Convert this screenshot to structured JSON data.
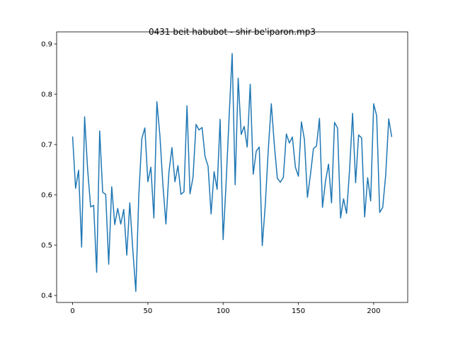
{
  "chart_data": {
    "type": "line",
    "title": "0431 beit habubot - shir be'iparon.mp3",
    "x": [
      0,
      2,
      4,
      6,
      8,
      10,
      12,
      14,
      16,
      18,
      20,
      22,
      24,
      26,
      28,
      30,
      32,
      34,
      36,
      38,
      40,
      42,
      44,
      46,
      48,
      50,
      52,
      54,
      56,
      58,
      60,
      62,
      64,
      66,
      68,
      70,
      72,
      74,
      76,
      78,
      80,
      82,
      84,
      86,
      88,
      90,
      92,
      94,
      96,
      98,
      100,
      102,
      104,
      106,
      108,
      110,
      112,
      114,
      116,
      118,
      120,
      122,
      124,
      126,
      128,
      130,
      132,
      134,
      136,
      138,
      140,
      142,
      144,
      146,
      148,
      150,
      152,
      154,
      156,
      158,
      160,
      162,
      164,
      166,
      168,
      170,
      172,
      174,
      176,
      178,
      180,
      182,
      184,
      186,
      188,
      190,
      192,
      194,
      196,
      198,
      200,
      202,
      204,
      206,
      208,
      210,
      212
    ],
    "series": [
      {
        "color": "#1f77b4",
        "values": [
          0.716,
          0.613,
          0.649,
          0.496,
          0.755,
          0.65,
          0.576,
          0.579,
          0.446,
          0.727,
          0.605,
          0.601,
          0.462,
          0.616,
          0.541,
          0.573,
          0.542,
          0.571,
          0.48,
          0.584,
          0.491,
          0.408,
          0.6,
          0.712,
          0.733,
          0.626,
          0.655,
          0.554,
          0.785,
          0.718,
          0.62,
          0.542,
          0.645,
          0.694,
          0.626,
          0.658,
          0.601,
          0.606,
          0.777,
          0.602,
          0.635,
          0.74,
          0.729,
          0.734,
          0.676,
          0.657,
          0.562,
          0.646,
          0.611,
          0.75,
          0.511,
          0.625,
          0.756,
          0.881,
          0.62,
          0.832,
          0.72,
          0.736,
          0.695,
          0.82,
          0.641,
          0.687,
          0.695,
          0.499,
          0.58,
          0.69,
          0.781,
          0.7,
          0.633,
          0.625,
          0.635,
          0.721,
          0.703,
          0.715,
          0.655,
          0.637,
          0.745,
          0.71,
          0.595,
          0.64,
          0.692,
          0.697,
          0.752,
          0.575,
          0.627,
          0.661,
          0.584,
          0.744,
          0.733,
          0.554,
          0.592,
          0.563,
          0.65,
          0.762,
          0.624,
          0.719,
          0.713,
          0.556,
          0.634,
          0.588,
          0.781,
          0.757,
          0.565,
          0.575,
          0.64,
          0.751,
          0.715
        ]
      }
    ],
    "xlim": [
      -10.6,
      222.6
    ],
    "xticks": [
      0,
      50,
      100,
      150,
      200
    ],
    "ylim": [
      0.386,
      0.924
    ],
    "yticks": [
      0.4,
      0.5,
      0.6,
      0.7,
      0.8,
      0.9
    ]
  }
}
